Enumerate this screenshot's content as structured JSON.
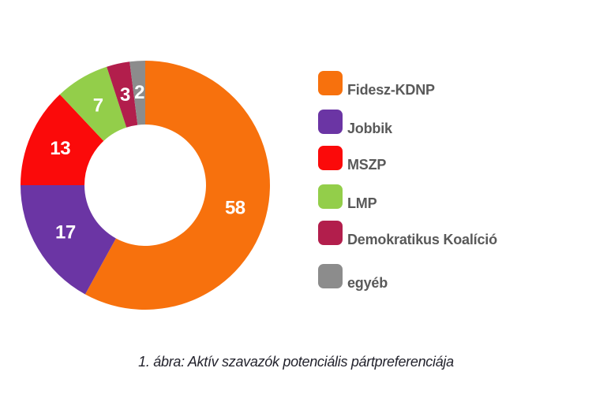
{
  "page": {
    "background_color": "#FFFFFF"
  },
  "chart_data": {
    "type": "pie",
    "subtype": "donut",
    "title": "",
    "caption": "1. ábra: Aktív szavazók potenciális pártpreferenciája",
    "categories": [
      "Fidesz-KDNP",
      "Jobbik",
      "MSZP",
      "LMP",
      "Demokratikus Koalíció",
      "egyéb"
    ],
    "values": [
      58,
      17,
      13,
      7,
      3,
      2
    ],
    "data_labels": [
      "58",
      "17",
      "13",
      "7",
      "3",
      "2"
    ],
    "colors": [
      "#F7710D",
      "#6B35A4",
      "#FB0A0A",
      "#93CE4A",
      "#B21E4C",
      "#8C8C8C"
    ],
    "label_color": "#FFFFFF",
    "legend_position": "right",
    "legend_text_color": "#595959",
    "caption_color": "#23232D",
    "start_angle_deg": 0,
    "direction": "clockwise",
    "donut_hole_ratio": 0.49
  }
}
